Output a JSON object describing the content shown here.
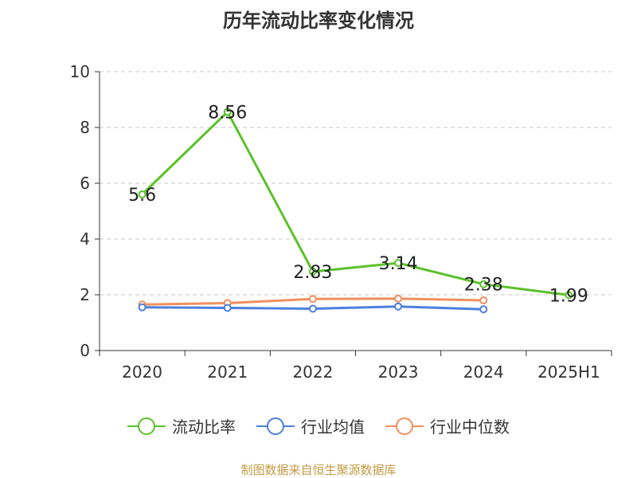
{
  "chart_data": {
    "type": "line",
    "title": "历年流动比率变化情况",
    "categories": [
      "2020",
      "2021",
      "2022",
      "2023",
      "2024",
      "2025H1"
    ],
    "ylim": [
      0,
      10
    ],
    "yticks": [
      "0",
      "2",
      "4",
      "6",
      "8",
      "10"
    ],
    "grid": "horizontal dashed",
    "legend_position": "bottom",
    "series": [
      {
        "name": "流动比率",
        "color": "#5bc12a",
        "values": [
          5.6,
          8.56,
          2.83,
          3.14,
          2.38,
          1.99
        ],
        "labels": [
          "5.6",
          "8.56",
          "2.83",
          "3.14",
          "2.38",
          "1.99"
        ]
      },
      {
        "name": "行业均值",
        "color": "#4d7fdf",
        "values": [
          1.55,
          1.53,
          1.5,
          1.58,
          1.48,
          null
        ]
      },
      {
        "name": "行业中位数",
        "color": "#f08f5e",
        "values": [
          1.65,
          1.7,
          1.85,
          1.86,
          1.8,
          null
        ]
      }
    ]
  },
  "footer": {
    "source": "制图数据来自恒生聚源数据库"
  }
}
